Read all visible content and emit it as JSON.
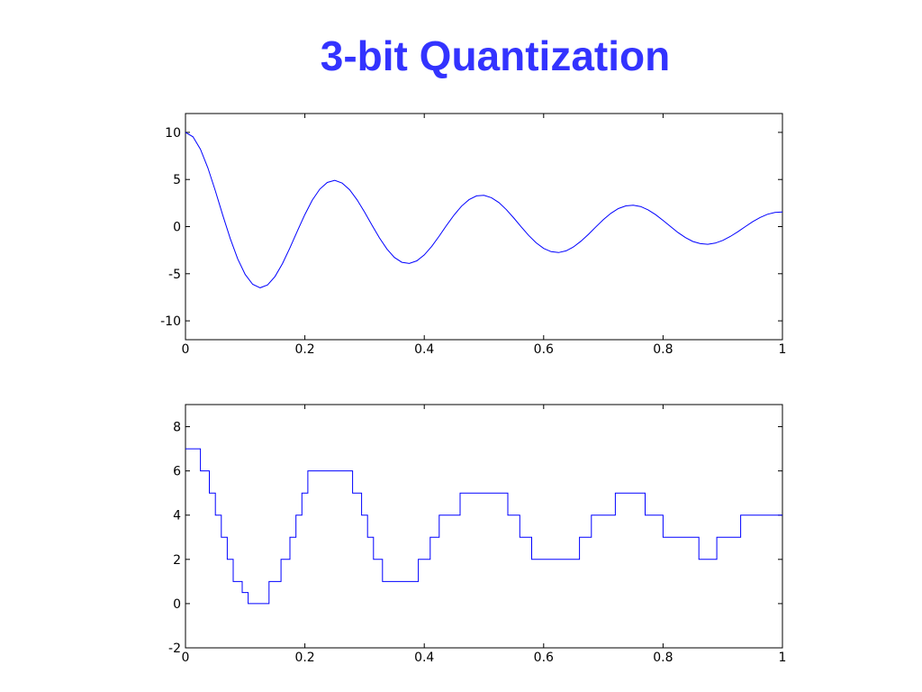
{
  "title": "3-bit Quantization",
  "colors": {
    "title": "#3333ff",
    "line": "#0000ff",
    "axis": "#000000"
  },
  "chart_data": [
    {
      "type": "line",
      "title": "",
      "xlabel": "",
      "ylabel": "",
      "xlim": [
        0,
        1
      ],
      "ylim": [
        -12,
        12
      ],
      "xticks": [
        0,
        0.2,
        0.4,
        0.6,
        0.8,
        1
      ],
      "xticklabels": [
        "0",
        "0.2",
        "0.4",
        "0.6",
        "0.8",
        "1"
      ],
      "yticks": [
        -10,
        -5,
        0,
        5,
        10
      ],
      "yticklabels": [
        "-10",
        "-5",
        "0",
        "5",
        "10"
      ],
      "grid": false,
      "series": [
        {
          "x": [
            0,
            0.0125,
            0.025,
            0.0375,
            0.05,
            0.0625,
            0.075,
            0.0875,
            0.1,
            0.1125,
            0.125,
            0.1375,
            0.15,
            0.1625,
            0.175,
            0.1875,
            0.2,
            0.2125,
            0.225,
            0.2375,
            0.25,
            0.2625,
            0.275,
            0.2875,
            0.3,
            0.3125,
            0.325,
            0.3375,
            0.35,
            0.3625,
            0.375,
            0.3875,
            0.4,
            0.4125,
            0.425,
            0.4375,
            0.45,
            0.4625,
            0.475,
            0.4875,
            0.5,
            0.5125,
            0.525,
            0.5375,
            0.55,
            0.5625,
            0.575,
            0.5875,
            0.6,
            0.6125,
            0.625,
            0.6375,
            0.65,
            0.6625,
            0.675,
            0.6875,
            0.7,
            0.7125,
            0.725,
            0.7375,
            0.75,
            0.7625,
            0.775,
            0.7875,
            0.8,
            0.8125,
            0.825,
            0.8375,
            0.85,
            0.8625,
            0.875,
            0.8875,
            0.9,
            0.9125,
            0.925,
            0.9375,
            0.95,
            0.9625,
            0.975,
            0.9875,
            1
          ],
          "y": [
            10,
            9.53,
            8.21,
            6.22,
            3.79,
            1.21,
            -1.26,
            -3.42,
            -5.08,
            -6.12,
            -6.49,
            -6.19,
            -5.3,
            -3.93,
            -2.26,
            -0.46,
            1.28,
            2.82,
            3.98,
            4.69,
            4.91,
            4.62,
            3.91,
            2.84,
            1.54,
            0.14,
            -1.2,
            -2.38,
            -3.27,
            -3.79,
            -3.91,
            -3.63,
            -3.0,
            -2.09,
            -1.0,
            0.15,
            1.24,
            2.17,
            2.86,
            3.26,
            3.32,
            3.07,
            2.55,
            1.8,
            0.91,
            -0.03,
            -0.94,
            -1.72,
            -2.31,
            -2.66,
            -2.75,
            -2.57,
            -2.15,
            -1.55,
            -0.82,
            -0.03,
            0.74,
            1.41,
            1.91,
            2.2,
            2.27,
            2.13,
            1.78,
            1.27,
            0.66,
            0.01,
            -0.63,
            -1.17,
            -1.58,
            -1.81,
            -1.87,
            -1.75,
            -1.46,
            -1.05,
            -0.55,
            -0.01,
            0.52,
            0.97,
            1.31,
            1.5,
            1.55
          ]
        }
      ]
    },
    {
      "type": "line",
      "title": "",
      "xlabel": "",
      "ylabel": "",
      "xlim": [
        0,
        1
      ],
      "ylim": [
        -2,
        9
      ],
      "xticks": [
        0,
        0.2,
        0.4,
        0.6,
        0.8,
        1
      ],
      "xticklabels": [
        "0",
        "0.2",
        "0.4",
        "0.6",
        "0.8",
        "1"
      ],
      "yticks": [
        -2,
        0,
        2,
        4,
        6,
        8
      ],
      "yticklabels": [
        "-2",
        "0",
        "2",
        "4",
        "6",
        "8"
      ],
      "grid": false,
      "series": [
        {
          "step": true,
          "x": [
            0,
            0.025,
            0.04,
            0.05,
            0.06,
            0.07,
            0.08,
            0.095,
            0.105,
            0.14,
            0.16,
            0.175,
            0.185,
            0.195,
            0.205,
            0.215,
            0.23,
            0.28,
            0.295,
            0.305,
            0.315,
            0.33,
            0.355,
            0.39,
            0.41,
            0.425,
            0.44,
            0.46,
            0.54,
            0.56,
            0.58,
            0.66,
            0.68,
            0.72,
            0.77,
            0.8,
            0.86,
            0.89,
            0.93,
            1
          ],
          "y": [
            7,
            6,
            5,
            4,
            3,
            2,
            1,
            0.5,
            0,
            1,
            2,
            3,
            4,
            5,
            6,
            6,
            6,
            5,
            4,
            3,
            2,
            1,
            1,
            2,
            3,
            4,
            4,
            5,
            4,
            3,
            2,
            3,
            4,
            5,
            4,
            3,
            2,
            3,
            4,
            4
          ]
        }
      ]
    }
  ]
}
